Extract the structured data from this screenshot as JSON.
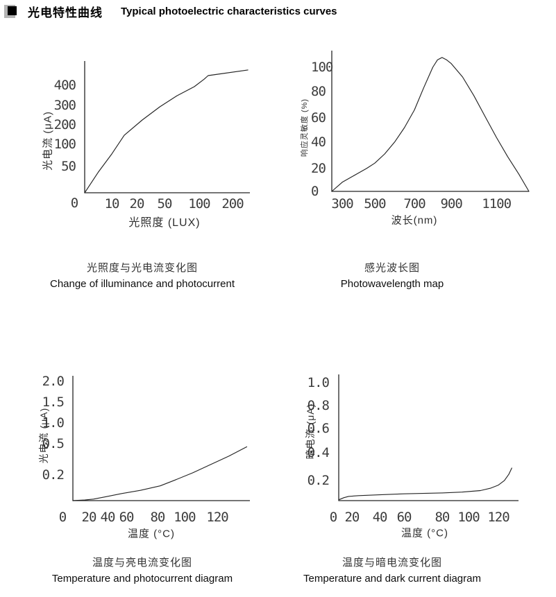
{
  "header": {
    "title_cn": "光电特性曲线",
    "title_en": "Typical photoelectric characteristics curves"
  },
  "chart_data": [
    {
      "id": "illuminance-vs-photocurrent",
      "type": "line",
      "title_cn": "光照度与光电流变化图",
      "title_en": "Change of illuminance and photocurrent",
      "xlabel": "光照度 (LUX)",
      "ylabel": "光电流 (μA)",
      "origin_label": "0",
      "origin_dx": -15,
      "origin_dy": 21,
      "xtick_dy": 22,
      "ytick_dx": -13,
      "y_align": "end",
      "x_ticks": [
        {
          "label": "10",
          "v": 10
        },
        {
          "label": "20",
          "v": 20
        },
        {
          "label": "50",
          "v": 50
        },
        {
          "label": "100",
          "v": 100
        },
        {
          "label": "200",
          "v": 200
        }
      ],
      "y_ticks": [
        {
          "label": "50",
          "v": 50
        },
        {
          "label": "100",
          "v": 100
        },
        {
          "label": "200",
          "v": 200
        },
        {
          "label": "300",
          "v": 300
        },
        {
          "label": "400",
          "v": 400
        }
      ],
      "x_scale": [
        [
          0,
          0
        ],
        [
          10,
          0.164
        ],
        [
          20,
          0.315
        ],
        [
          50,
          0.483
        ],
        [
          100,
          0.693
        ],
        [
          200,
          0.895
        ]
      ],
      "y_scale": [
        [
          0,
          0
        ],
        [
          50,
          0.2
        ],
        [
          100,
          0.368
        ],
        [
          200,
          0.516
        ],
        [
          300,
          0.663
        ],
        [
          400,
          0.816
        ]
      ],
      "points": [
        [
          0,
          0
        ],
        [
          5,
          39
        ],
        [
          10,
          78
        ],
        [
          15,
          146
        ],
        [
          26,
          225
        ],
        [
          45,
          293
        ],
        [
          68,
          348
        ],
        [
          93,
          393
        ],
        [
          115,
          430
        ],
        [
          127,
          448
        ],
        [
          246,
          476
        ]
      ],
      "xlim": [
        0,
        240
      ],
      "ylim": [
        0,
        500
      ]
    },
    {
      "id": "spectral-response",
      "type": "line",
      "title_cn": "感光波长图",
      "title_en": "Photowavelength map",
      "xlabel": "波长(nm)",
      "ylabel": "响应灵敏度 (%)",
      "origin_label": "",
      "xtick_dy": 24,
      "ytick_dx": -30,
      "y_align": "start",
      "x_ticks": [
        {
          "label": "300",
          "v": 300
        },
        {
          "label": "500",
          "v": 500
        },
        {
          "label": "700",
          "v": 700
        },
        {
          "label": "900",
          "v": 900
        },
        {
          "label": "1100",
          "v": 1100
        }
      ],
      "y_ticks": [
        {
          "label": "0",
          "v": 0
        },
        {
          "label": "20",
          "v": 20
        },
        {
          "label": "40",
          "v": 40
        },
        {
          "label": "60",
          "v": 60
        },
        {
          "label": "80",
          "v": 80
        },
        {
          "label": "100",
          "v": 100
        }
      ],
      "x_scale": [
        [
          235,
          0
        ],
        [
          300,
          0.053
        ],
        [
          500,
          0.218
        ],
        [
          700,
          0.419
        ],
        [
          900,
          0.606
        ],
        [
          1100,
          0.835
        ],
        [
          1245,
          1.0
        ]
      ],
      "y_scale": [
        [
          0,
          0
        ],
        [
          20,
          0.163
        ],
        [
          40,
          0.35
        ],
        [
          60,
          0.522
        ],
        [
          80,
          0.709
        ],
        [
          100,
          0.882
        ]
      ],
      "points": [
        [
          235,
          0
        ],
        [
          300,
          8
        ],
        [
          350,
          12
        ],
        [
          400,
          16
        ],
        [
          450,
          20
        ],
        [
          500,
          24
        ],
        [
          550,
          31
        ],
        [
          600,
          40
        ],
        [
          650,
          52
        ],
        [
          700,
          66
        ],
        [
          750,
          83
        ],
        [
          800,
          100
        ],
        [
          825,
          106
        ],
        [
          850,
          108
        ],
        [
          875,
          106
        ],
        [
          900,
          103
        ],
        [
          950,
          92
        ],
        [
          1000,
          77
        ],
        [
          1050,
          61
        ],
        [
          1100,
          44
        ],
        [
          1150,
          29
        ],
        [
          1200,
          15
        ],
        [
          1245,
          0
        ]
      ],
      "xlim": [
        235,
        1245
      ],
      "ylim": [
        0,
        110
      ]
    },
    {
      "id": "temperature-vs-photocurrent",
      "type": "line",
      "title_cn": "温度与亮电流变化图",
      "title_en": "Temperature and photocurrent diagram",
      "xlabel": "温度 (°C)",
      "ylabel": "光电流 (μA)",
      "origin_label": "0",
      "origin_dx": -15,
      "origin_dy": 30,
      "xtick_dy": 30,
      "ytick_dx": -13,
      "y_align": "end",
      "x_ticks": [
        {
          "label": "20",
          "v": 20
        },
        {
          "label": "40",
          "v": 40
        },
        {
          "label": "60",
          "v": 60
        },
        {
          "label": "80",
          "v": 80
        },
        {
          "label": "100",
          "v": 100
        },
        {
          "label": "120",
          "v": 120
        }
      ],
      "y_ticks": [
        {
          "label": "0.2",
          "v": 0.2
        },
        {
          "label": "0.5",
          "v": 0.5
        },
        {
          "label": "1.0",
          "v": 1.0
        },
        {
          "label": "1.5",
          "v": 1.5
        },
        {
          "label": "2.0",
          "v": 2.0
        }
      ],
      "x_scale": [
        [
          0,
          0
        ],
        [
          20,
          0.09
        ],
        [
          40,
          0.196
        ],
        [
          60,
          0.302
        ],
        [
          80,
          0.478
        ],
        [
          100,
          0.631
        ],
        [
          120,
          0.816
        ]
      ],
      "y_scale": [
        [
          0,
          0
        ],
        [
          0.2,
          0.206
        ],
        [
          0.5,
          0.456
        ],
        [
          1.0,
          0.622
        ],
        [
          1.5,
          0.789
        ],
        [
          2.0,
          0.956
        ]
      ],
      "points": [
        [
          0,
          0
        ],
        [
          15,
          0.005
        ],
        [
          25,
          0.012
        ],
        [
          38,
          0.03
        ],
        [
          55,
          0.055
        ],
        [
          69,
          0.08
        ],
        [
          82,
          0.115
        ],
        [
          93,
          0.16
        ],
        [
          105,
          0.22
        ],
        [
          116,
          0.3
        ],
        [
          127,
          0.38
        ],
        [
          138,
          0.47
        ]
      ],
      "xlim": [
        0,
        140
      ],
      "ylim": [
        0,
        2.0
      ]
    },
    {
      "id": "temperature-vs-dark-current",
      "type": "line",
      "title_cn": "温度与暗电流变化图",
      "title_en": "Temperature and dark current diagram",
      "xlabel": "温度 (°C)",
      "ylabel": "暗电流 (μA)",
      "origin_label": "0",
      "origin_dx": -8,
      "origin_dy": 30,
      "xtick_dy": 30,
      "ytick_dx": -14,
      "y_align": "end",
      "x_ticks": [
        {
          "label": "20",
          "v": 20
        },
        {
          "label": "40",
          "v": 40
        },
        {
          "label": "60",
          "v": 60
        },
        {
          "label": "80",
          "v": 80
        },
        {
          "label": "100",
          "v": 100
        },
        {
          "label": "120",
          "v": 120
        }
      ],
      "y_ticks": [
        {
          "label": "0.2",
          "v": 0.2
        },
        {
          "label": "0.4",
          "v": 0.4
        },
        {
          "label": "0.6",
          "v": 0.6
        },
        {
          "label": "0.8",
          "v": 0.8
        },
        {
          "label": "1.0",
          "v": 1.0
        }
      ],
      "x_scale": [
        [
          0,
          0
        ],
        [
          20,
          0.073
        ],
        [
          40,
          0.228
        ],
        [
          60,
          0.363
        ],
        [
          80,
          0.575
        ],
        [
          100,
          0.722
        ],
        [
          120,
          0.888
        ]
      ],
      "y_scale": [
        [
          0,
          0
        ],
        [
          0.2,
          0.159
        ],
        [
          0.4,
          0.379
        ],
        [
          0.6,
          0.571
        ],
        [
          0.8,
          0.753
        ],
        [
          1.0,
          0.934
        ]
      ],
      "points": [
        [
          0,
          0.008
        ],
        [
          8,
          0.03
        ],
        [
          15,
          0.042
        ],
        [
          25,
          0.05
        ],
        [
          40,
          0.058
        ],
        [
          60,
          0.068
        ],
        [
          80,
          0.077
        ],
        [
          95,
          0.085
        ],
        [
          108,
          0.1
        ],
        [
          115,
          0.125
        ],
        [
          120,
          0.155
        ],
        [
          124,
          0.2
        ],
        [
          127,
          0.245
        ],
        [
          129,
          0.29
        ]
      ],
      "xlim": [
        0,
        133
      ],
      "ylim": [
        0,
        1.0
      ]
    }
  ]
}
